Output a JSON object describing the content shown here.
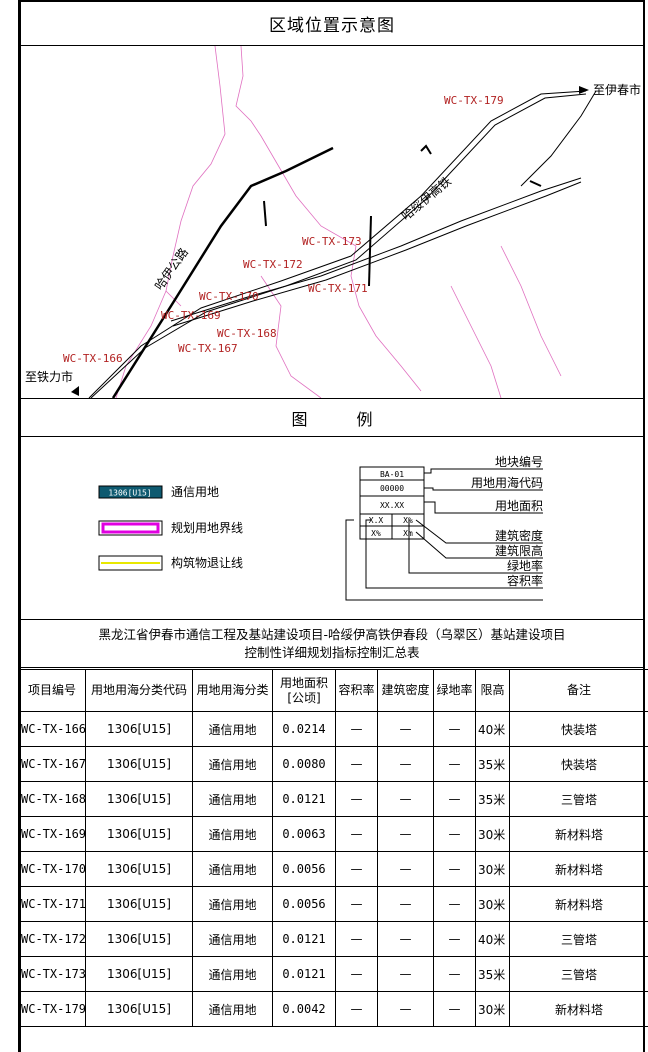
{
  "header": {
    "title": "区域位置示意图"
  },
  "map": {
    "labels": {
      "to_yichun": "至伊春市",
      "to_tieli": "至铁力市",
      "railway": "哈绥伊高铁",
      "highway": "哈伊公路"
    },
    "sites": [
      "WC-TX-179",
      "WC-TX-173",
      "WC-TX-172",
      "WC-TX-171",
      "WC-TX-170",
      "WC-TX-169",
      "WC-TX-168",
      "WC-TX-167",
      "WC-TX-166"
    ],
    "colors": {
      "site_label": "#b22222",
      "boundary": "#e070c0",
      "rail": "#000000"
    }
  },
  "legend": {
    "title": "图  例",
    "items": {
      "comm_code": "1306[U15]",
      "comm_land": "通信用地",
      "boundary": "规划用地界线",
      "setback": "构筑物退让线"
    },
    "key_box": {
      "code": "BA-01",
      "sea_code": "00000",
      "area": "XX.XX",
      "limit_left": "X.X",
      "limit_right": "X%",
      "bottom_left": "X%",
      "bottom_right": "Xm"
    },
    "annotations": {
      "plot_no": "地块编号",
      "sea_code": "用地用海代码",
      "area": "用地面积",
      "density": "建筑密度",
      "height": "建筑限高",
      "green": "绿地率",
      "far": "容积率"
    }
  },
  "table": {
    "title_line1": "黑龙江省伊春市通信工程及基站建设项目-哈绥伊高铁伊春段（乌翠区）基站建设项目",
    "title_line2": "控制性详细规划指标控制汇总表",
    "headers": [
      "项目编号",
      "用地用海分类代码",
      "用地用海分类",
      "用地面积\n[公顷]",
      "容积率",
      "建筑密度",
      "绿地率",
      "限高",
      "备注"
    ],
    "rows": [
      [
        "WC-TX-166",
        "1306[U15]",
        "通信用地",
        "0.0214",
        "—",
        "—",
        "—",
        "40米",
        "快装塔"
      ],
      [
        "WC-TX-167",
        "1306[U15]",
        "通信用地",
        "0.0080",
        "—",
        "—",
        "—",
        "35米",
        "快装塔"
      ],
      [
        "WC-TX-168",
        "1306[U15]",
        "通信用地",
        "0.0121",
        "—",
        "—",
        "—",
        "35米",
        "三管塔"
      ],
      [
        "WC-TX-169",
        "1306[U15]",
        "通信用地",
        "0.0063",
        "—",
        "—",
        "—",
        "30米",
        "新材料塔"
      ],
      [
        "WC-TX-170",
        "1306[U15]",
        "通信用地",
        "0.0056",
        "—",
        "—",
        "—",
        "30米",
        "新材料塔"
      ],
      [
        "WC-TX-171",
        "1306[U15]",
        "通信用地",
        "0.0056",
        "—",
        "—",
        "—",
        "30米",
        "新材料塔"
      ],
      [
        "WC-TX-172",
        "1306[U15]",
        "通信用地",
        "0.0121",
        "—",
        "—",
        "—",
        "40米",
        "三管塔"
      ],
      [
        "WC-TX-173",
        "1306[U15]",
        "通信用地",
        "0.0121",
        "—",
        "—",
        "—",
        "35米",
        "三管塔"
      ],
      [
        "WC-TX-179",
        "1306[U15]",
        "通信用地",
        "0.0042",
        "—",
        "—",
        "—",
        "30米",
        "新材料塔"
      ]
    ]
  }
}
